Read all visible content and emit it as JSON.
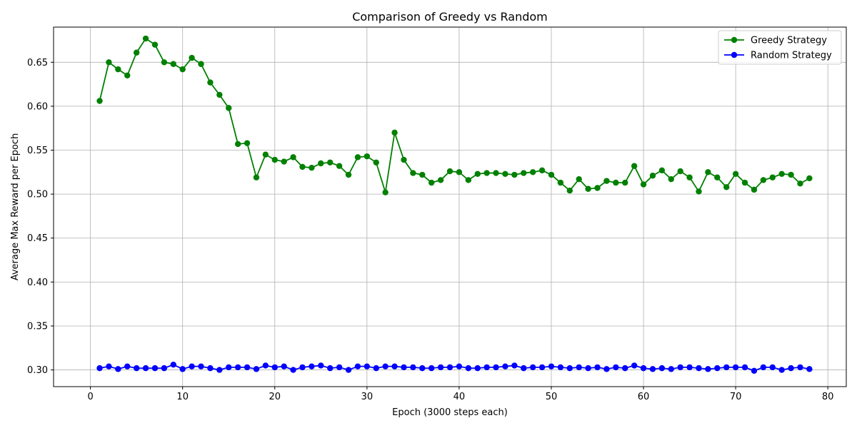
{
  "chart_data": {
    "type": "line",
    "title": "Comparison of Greedy vs Random",
    "xlabel": "Epoch (3000 steps each)",
    "ylabel": "Average Max Reward per Epoch",
    "xlim": [
      -4,
      82
    ],
    "ylim": [
      0.281,
      0.69
    ],
    "xticks": [
      0,
      10,
      20,
      30,
      40,
      50,
      60,
      70,
      80
    ],
    "yticks": [
      0.3,
      0.35,
      0.4,
      0.45,
      0.5,
      0.55,
      0.6,
      0.65
    ],
    "grid": true,
    "legend_position": "top-right",
    "x": [
      1,
      2,
      3,
      4,
      5,
      6,
      7,
      8,
      9,
      10,
      11,
      12,
      13,
      14,
      15,
      16,
      17,
      18,
      19,
      20,
      21,
      22,
      23,
      24,
      25,
      26,
      27,
      28,
      29,
      30,
      31,
      32,
      33,
      34,
      35,
      36,
      37,
      38,
      39,
      40,
      41,
      42,
      43,
      44,
      45,
      46,
      47,
      48,
      49,
      50,
      51,
      52,
      53,
      54,
      55,
      56,
      57,
      58,
      59,
      60,
      61,
      62,
      63,
      64,
      65,
      66,
      67,
      68,
      69,
      70,
      71,
      72,
      73,
      74,
      75,
      76,
      77,
      78
    ],
    "series": [
      {
        "name": "Greedy Strategy",
        "color": "#008000",
        "values": [
          0.606,
          0.65,
          0.642,
          0.635,
          0.661,
          0.677,
          0.67,
          0.65,
          0.648,
          0.642,
          0.655,
          0.648,
          0.627,
          0.613,
          0.598,
          0.557,
          0.558,
          0.519,
          0.545,
          0.539,
          0.537,
          0.542,
          0.531,
          0.53,
          0.535,
          0.536,
          0.532,
          0.522,
          0.542,
          0.543,
          0.536,
          0.502,
          0.57,
          0.539,
          0.524,
          0.522,
          0.513,
          0.516,
          0.526,
          0.525,
          0.516,
          0.523,
          0.524,
          0.524,
          0.523,
          0.522,
          0.524,
          0.525,
          0.527,
          0.522,
          0.513,
          0.504,
          0.517,
          0.506,
          0.507,
          0.515,
          0.513,
          0.513,
          0.532,
          0.511,
          0.521,
          0.527,
          0.517,
          0.526,
          0.519,
          0.503,
          0.525,
          0.519,
          0.508,
          0.523,
          0.513,
          0.505,
          0.516,
          0.519,
          0.523,
          0.522,
          0.512,
          0.518
        ]
      },
      {
        "name": "Random Strategy",
        "color": "#0000ff",
        "values": [
          0.302,
          0.304,
          0.301,
          0.304,
          0.302,
          0.302,
          0.302,
          0.302,
          0.306,
          0.301,
          0.304,
          0.304,
          0.302,
          0.3,
          0.303,
          0.303,
          0.303,
          0.301,
          0.305,
          0.303,
          0.304,
          0.3,
          0.303,
          0.304,
          0.305,
          0.302,
          0.303,
          0.3,
          0.304,
          0.304,
          0.302,
          0.304,
          0.304,
          0.303,
          0.303,
          0.302,
          0.302,
          0.303,
          0.303,
          0.304,
          0.302,
          0.302,
          0.303,
          0.303,
          0.304,
          0.305,
          0.302,
          0.303,
          0.303,
          0.304,
          0.303,
          0.302,
          0.303,
          0.302,
          0.303,
          0.301,
          0.303,
          0.302,
          0.305,
          0.302,
          0.301,
          0.302,
          0.301,
          0.303,
          0.303,
          0.302,
          0.301,
          0.302,
          0.303,
          0.303,
          0.303,
          0.299,
          0.303,
          0.303,
          0.3,
          0.302,
          0.303,
          0.301
        ]
      }
    ]
  }
}
